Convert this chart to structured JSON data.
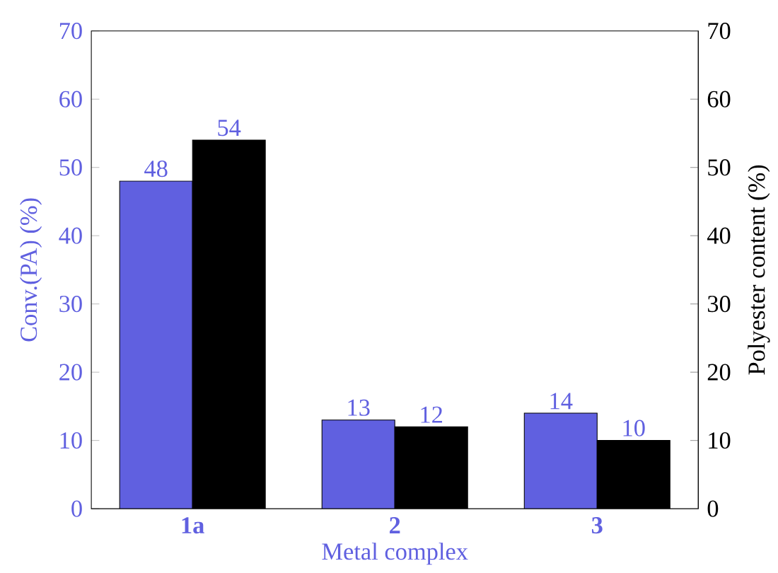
{
  "chart_data": {
    "type": "bar",
    "xlabel": "Metal complex",
    "ylabel": "Conv.(PA) (%)",
    "y2label": "Polyester content (%)",
    "categories": [
      "1a",
      "2",
      "3"
    ],
    "series": [
      {
        "color": "#6060e0",
        "values": [
          48,
          13,
          14
        ]
      },
      {
        "color": "#000000",
        "values": [
          54,
          12,
          10
        ],
        "axis": "y2"
      }
    ],
    "ylim": [
      0,
      70
    ],
    "yticks": [
      0,
      10,
      20,
      30,
      40,
      50,
      60,
      70
    ],
    "y2lim": [
      0,
      70
    ],
    "y2ticks": [
      0,
      10,
      20,
      30,
      40,
      50,
      60,
      70
    ],
    "data_labels": true
  }
}
